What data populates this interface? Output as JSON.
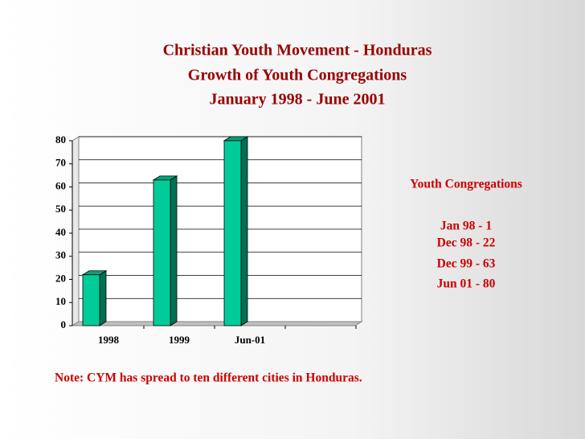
{
  "title_lines": [
    "Christian Youth Movement - Honduras",
    "Growth of Youth Congregations",
    "January 1998 - June 2001"
  ],
  "chart_data": {
    "type": "bar",
    "categories": [
      "1998",
      "1999",
      "Jun-01",
      null
    ],
    "values": [
      22,
      63,
      80,
      null
    ],
    "color": "#00cc99",
    "ylim": [
      0,
      80
    ],
    "yticks": [
      0,
      10,
      20,
      30,
      40,
      50,
      60,
      70,
      80
    ],
    "grid": true
  },
  "side_box": {
    "heading": "Youth Congregations",
    "lines": [
      "Jan 98 - 1",
      "Dec 98 - 22",
      "Dec 99 - 63",
      "Jun 01 - 80"
    ]
  },
  "note": "Note: CYM has spread to ten different cities in Honduras."
}
